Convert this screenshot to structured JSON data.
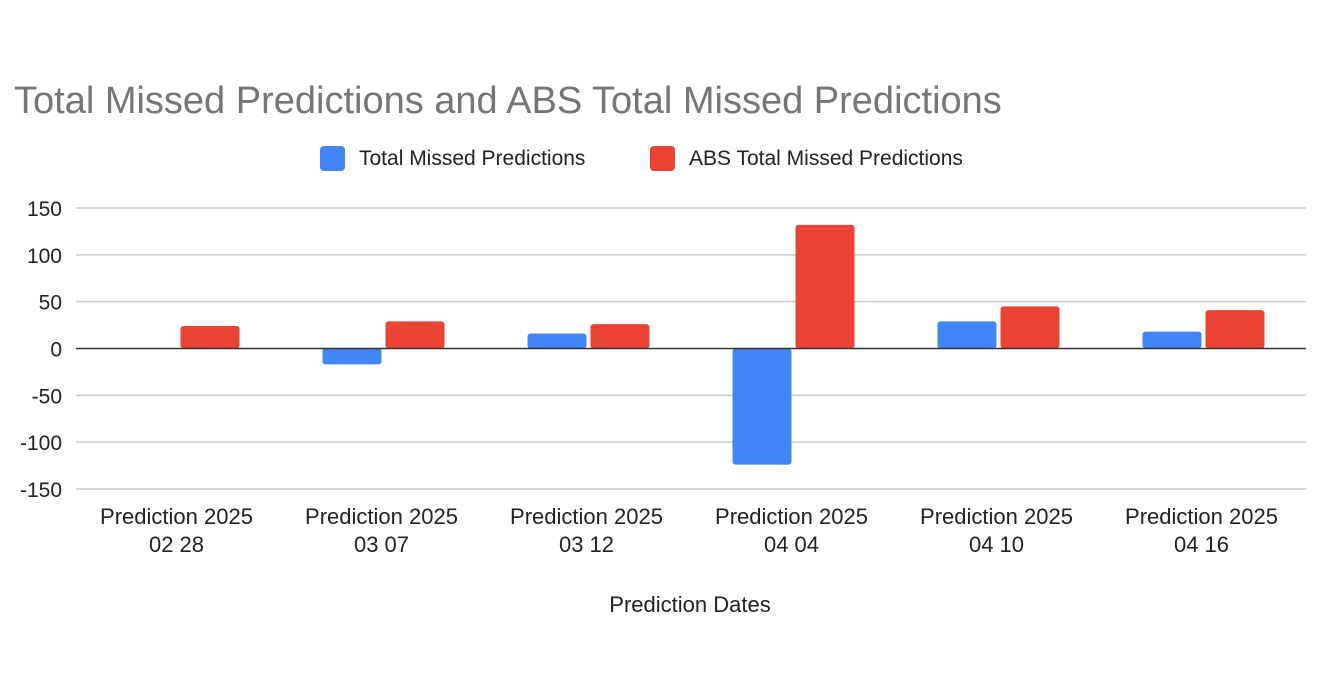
{
  "chart_data": {
    "type": "bar",
    "title": "Total Missed Predictions and ABS Total Missed Predictions",
    "xlabel": "Prediction Dates",
    "ylabel": "",
    "ylim": [
      -150,
      150
    ],
    "yticks": [
      150,
      100,
      50,
      0,
      -50,
      -100,
      -150
    ],
    "grid": true,
    "legend_position": "top",
    "categories": [
      [
        "Prediction 2025",
        "02 28"
      ],
      [
        "Prediction 2025",
        "03 07"
      ],
      [
        "Prediction 2025",
        "03 12"
      ],
      [
        "Prediction 2025",
        "04 04"
      ],
      [
        "Prediction 2025",
        "04 10"
      ],
      [
        "Prediction 2025",
        "04 16"
      ]
    ],
    "series": [
      {
        "name": "Total Missed Predictions",
        "color": "#4285f4",
        "values": [
          0,
          -17,
          16,
          -124,
          29,
          18
        ]
      },
      {
        "name": "ABS Total Missed Predictions",
        "color": "#ea4335",
        "values": [
          24,
          29,
          26,
          132,
          45,
          41
        ]
      }
    ]
  }
}
